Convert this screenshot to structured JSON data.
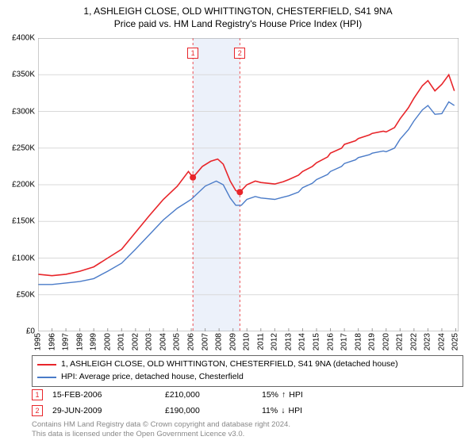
{
  "title": {
    "line1": "1, ASHLEIGH CLOSE, OLD WHITTINGTON, CHESTERFIELD, S41 9NA",
    "line2": "Price paid vs. HM Land Registry's House Price Index (HPI)",
    "fontsize": 12
  },
  "chart": {
    "type": "line",
    "background_color": "#ffffff",
    "grid_color": "#d9d9d9",
    "shaded_band": {
      "x_start": 2006.12,
      "x_end": 2009.49,
      "fill": "#ecf1fa"
    },
    "x": {
      "min": 1995,
      "max": 2025.2,
      "ticks": [
        1995,
        1996,
        1997,
        1998,
        1999,
        2000,
        2001,
        2002,
        2003,
        2004,
        2005,
        2006,
        2007,
        2008,
        2009,
        2010,
        2011,
        2012,
        2013,
        2014,
        2015,
        2016,
        2017,
        2018,
        2019,
        2020,
        2021,
        2022,
        2023,
        2024,
        2025
      ],
      "label_fontsize": 10
    },
    "y": {
      "min": 0,
      "max": 400000,
      "tick_step": 50000,
      "labels": [
        "£0",
        "£50K",
        "£100K",
        "£150K",
        "£200K",
        "£250K",
        "£300K",
        "£350K",
        "£400K"
      ],
      "label_fontsize": 10
    },
    "series": [
      {
        "name": "subject",
        "label": "1, ASHLEIGH CLOSE, OLD WHITTINGTON, CHESTERFIELD, S41 9NA (detached house)",
        "color": "#e8252a",
        "line_width": 1.6,
        "points": [
          [
            1995,
            78000
          ],
          [
            1996,
            76000
          ],
          [
            1997,
            78000
          ],
          [
            1998,
            82000
          ],
          [
            1999,
            88000
          ],
          [
            2000,
            100000
          ],
          [
            2001,
            112000
          ],
          [
            2002,
            135000
          ],
          [
            2003,
            158000
          ],
          [
            2004,
            180000
          ],
          [
            2005,
            198000
          ],
          [
            2005.8,
            218000
          ],
          [
            2006.12,
            210000
          ],
          [
            2006.8,
            225000
          ],
          [
            2007.4,
            232000
          ],
          [
            2007.9,
            235000
          ],
          [
            2008.3,
            228000
          ],
          [
            2008.8,
            205000
          ],
          [
            2009.2,
            192000
          ],
          [
            2009.49,
            190000
          ],
          [
            2010,
            200000
          ],
          [
            2010.6,
            205000
          ],
          [
            2011,
            203000
          ],
          [
            2012,
            201000
          ],
          [
            2012.6,
            204000
          ],
          [
            2013,
            207000
          ],
          [
            2013.7,
            213000
          ],
          [
            2014,
            218000
          ],
          [
            2014.7,
            225000
          ],
          [
            2015,
            230000
          ],
          [
            2015.8,
            238000
          ],
          [
            2016,
            243000
          ],
          [
            2016.8,
            250000
          ],
          [
            2017,
            255000
          ],
          [
            2017.8,
            260000
          ],
          [
            2018,
            263000
          ],
          [
            2018.8,
            268000
          ],
          [
            2019,
            270000
          ],
          [
            2019.8,
            273000
          ],
          [
            2020,
            272000
          ],
          [
            2020.6,
            278000
          ],
          [
            2021,
            290000
          ],
          [
            2021.6,
            305000
          ],
          [
            2022,
            318000
          ],
          [
            2022.6,
            335000
          ],
          [
            2023,
            342000
          ],
          [
            2023.5,
            328000
          ],
          [
            2024,
            337000
          ],
          [
            2024.5,
            350000
          ],
          [
            2024.9,
            328000
          ]
        ]
      },
      {
        "name": "hpi",
        "label": "HPI: Average price, detached house, Chesterfield",
        "color": "#4a7bc8",
        "line_width": 1.4,
        "points": [
          [
            1995,
            64000
          ],
          [
            1996,
            64000
          ],
          [
            1997,
            66000
          ],
          [
            1998,
            68000
          ],
          [
            1999,
            72000
          ],
          [
            2000,
            82000
          ],
          [
            2001,
            93000
          ],
          [
            2002,
            112000
          ],
          [
            2003,
            132000
          ],
          [
            2004,
            152000
          ],
          [
            2005,
            168000
          ],
          [
            2006,
            180000
          ],
          [
            2007,
            198000
          ],
          [
            2007.8,
            205000
          ],
          [
            2008.3,
            200000
          ],
          [
            2008.8,
            182000
          ],
          [
            2009.2,
            172000
          ],
          [
            2009.6,
            172000
          ],
          [
            2010,
            180000
          ],
          [
            2010.6,
            184000
          ],
          [
            2011,
            182000
          ],
          [
            2012,
            180000
          ],
          [
            2012.6,
            183000
          ],
          [
            2013,
            185000
          ],
          [
            2013.7,
            190000
          ],
          [
            2014,
            196000
          ],
          [
            2014.7,
            202000
          ],
          [
            2015,
            207000
          ],
          [
            2015.8,
            214000
          ],
          [
            2016,
            218000
          ],
          [
            2016.8,
            225000
          ],
          [
            2017,
            229000
          ],
          [
            2017.8,
            234000
          ],
          [
            2018,
            237000
          ],
          [
            2018.8,
            241000
          ],
          [
            2019,
            243000
          ],
          [
            2019.8,
            246000
          ],
          [
            2020,
            245000
          ],
          [
            2020.6,
            250000
          ],
          [
            2021,
            262000
          ],
          [
            2021.6,
            275000
          ],
          [
            2022,
            287000
          ],
          [
            2022.6,
            302000
          ],
          [
            2023,
            308000
          ],
          [
            2023.5,
            296000
          ],
          [
            2024,
            297000
          ],
          [
            2024.5,
            313000
          ],
          [
            2024.9,
            308000
          ]
        ]
      }
    ],
    "sale_markers": [
      {
        "n": "1",
        "x": 2006.12,
        "y": 210000,
        "color": "#e8252a"
      },
      {
        "n": "2",
        "x": 2009.49,
        "y": 190000,
        "color": "#e8252a"
      }
    ]
  },
  "legend": {
    "border_color": "#666666",
    "fontsize": 10.5
  },
  "sales": [
    {
      "n": "1",
      "date": "15-FEB-2006",
      "price": "£210,000",
      "delta": "15%",
      "arrow": "↑",
      "suffix": "HPI",
      "color": "#e8252a"
    },
    {
      "n": "2",
      "date": "29-JUN-2009",
      "price": "£190,000",
      "delta": "11%",
      "arrow": "↓",
      "suffix": "HPI",
      "color": "#e8252a"
    }
  ],
  "footer": {
    "line1": "Contains HM Land Registry data © Crown copyright and database right 2024.",
    "line2": "This data is licensed under the Open Government Licence v3.0.",
    "color": "#888888"
  }
}
